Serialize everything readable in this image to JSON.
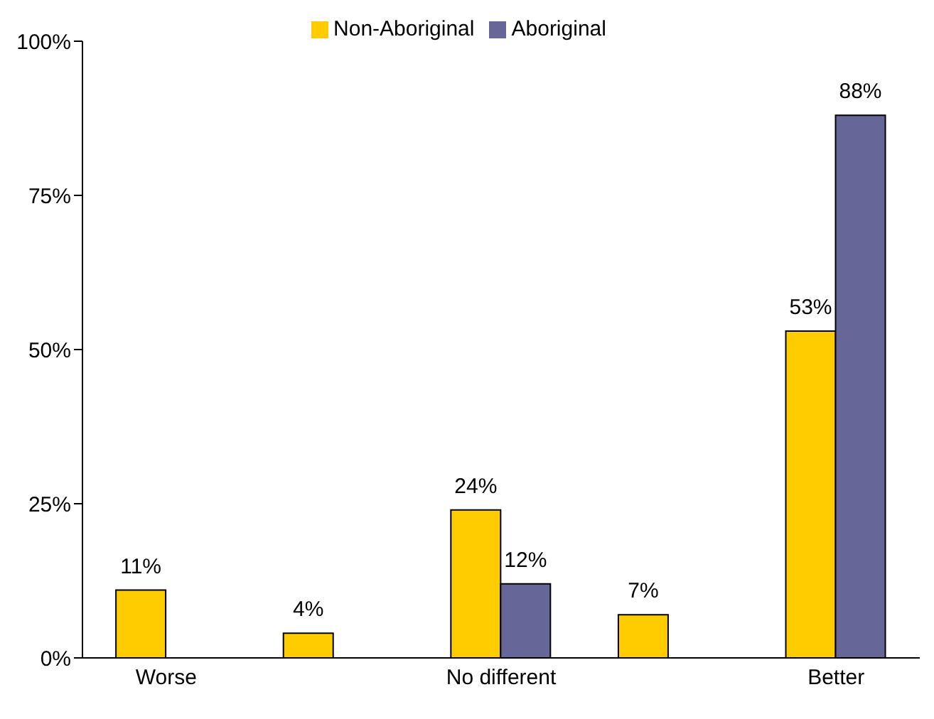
{
  "chart_data": {
    "type": "bar",
    "categories": [
      "Worse",
      null,
      "No different",
      null,
      "Better"
    ],
    "series": [
      {
        "name": "Non-Aboriginal",
        "color": "#ffcc00",
        "values": [
          11,
          4,
          24,
          7,
          53
        ],
        "value_labels": [
          "11%",
          "4%",
          "24%",
          "7%",
          "53%"
        ]
      },
      {
        "name": "Aboriginal",
        "color": "#666699",
        "values": [
          null,
          null,
          12,
          null,
          88
        ],
        "value_labels": [
          null,
          null,
          "12%",
          null,
          "88%"
        ]
      }
    ],
    "ylim": [
      0,
      100
    ],
    "yticks": [
      {
        "value": 0,
        "label": "0%"
      },
      {
        "value": 25,
        "label": "25%"
      },
      {
        "value": 50,
        "label": "50%"
      },
      {
        "value": 75,
        "label": "75%"
      },
      {
        "value": 100,
        "label": "100%"
      }
    ],
    "grid": false,
    "legend": "top"
  }
}
